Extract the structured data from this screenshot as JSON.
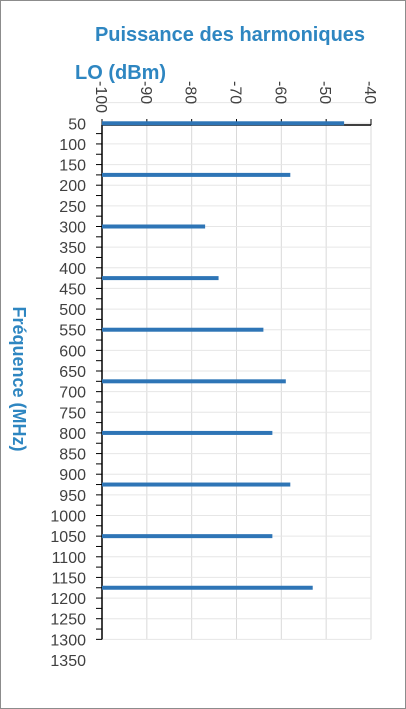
{
  "chart_data": {
    "type": "bar",
    "orientation": "horizontal",
    "title": "Puissance des harmoniques LO (dBm)",
    "title_lines": [
      "Puissance des harmoniques",
      "LO (dBm)"
    ],
    "xlabel": "Puissance des harmoniques LO (dBm)",
    "ylabel": "Fréquence (MHz)",
    "xlim": [
      -100,
      -40
    ],
    "x_ticks": [
      -100,
      -90,
      -80,
      -70,
      -60,
      -50,
      -40
    ],
    "x_tick_labels": [
      "-100",
      "-90",
      "-80",
      "-70",
      "-60",
      "-50",
      "-40"
    ],
    "ylim": [
      -50,
      1350
    ],
    "y_ticks": [
      50,
      100,
      150,
      200,
      250,
      300,
      350,
      400,
      450,
      500,
      550,
      600,
      650,
      700,
      750,
      800,
      850,
      900,
      950,
      1000,
      1050,
      1100,
      1150,
      1200,
      1250,
      1300,
      1350
    ],
    "y_tick_labels": [
      "50",
      "100",
      "150",
      "200",
      "250",
      "300",
      "350",
      "400",
      "450",
      "500",
      "550",
      "600",
      "650",
      "700",
      "750",
      "800",
      "850",
      "900",
      "950",
      "1000",
      "1050",
      "1100",
      "1150",
      "1200",
      "1250",
      "1300",
      "1350"
    ],
    "categories": [
      50,
      175,
      300,
      425,
      550,
      675,
      800,
      925,
      1050,
      1175
    ],
    "values": [
      -46,
      -58,
      -77,
      -74,
      -64,
      -59,
      -62,
      -58,
      -62,
      -53
    ],
    "grid": true,
    "legend": "none",
    "bar_color": "#2e75b6"
  }
}
